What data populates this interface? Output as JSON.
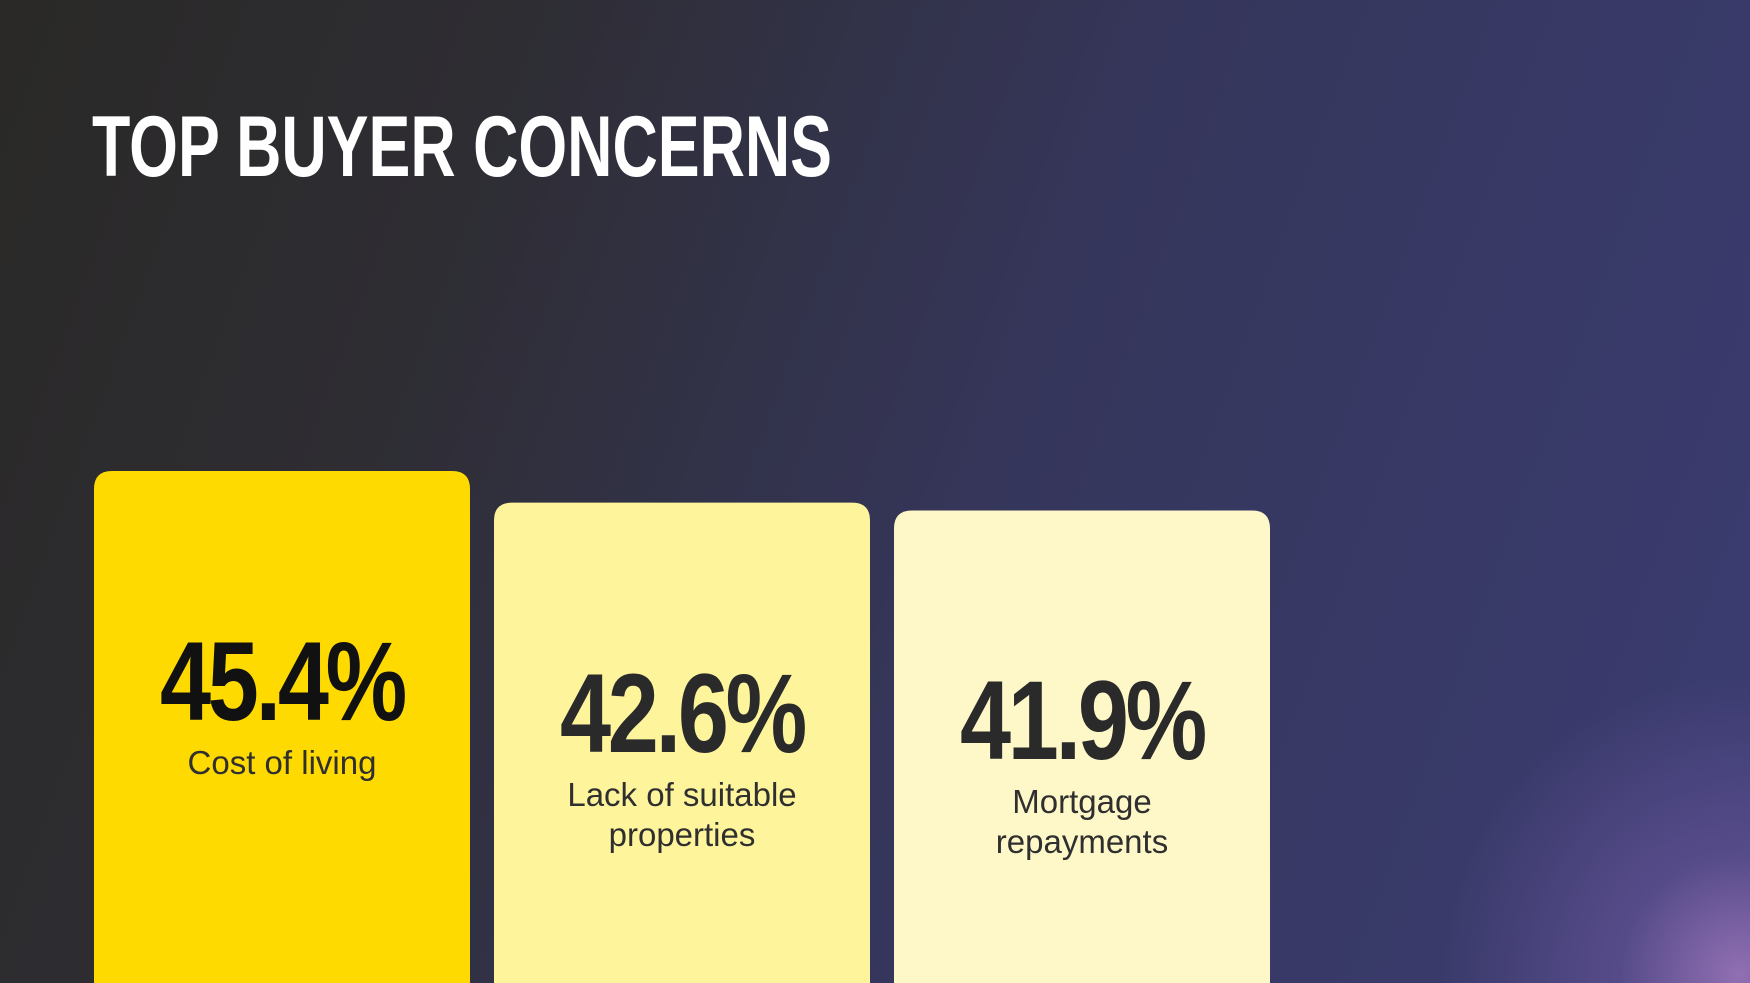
{
  "chart_data": {
    "type": "bar",
    "title": "TOP BUYER CONCERNS",
    "categories": [
      "Cost of living",
      "Lack of suitable properties",
      "Mortgage repayments"
    ],
    "values": [
      45.4,
      42.6,
      41.9
    ],
    "value_labels": [
      "45.4%",
      "42.6%",
      "41.9%"
    ],
    "colors": [
      "#FFDA00",
      "#FDF49C",
      "#FEF8C8"
    ]
  }
}
